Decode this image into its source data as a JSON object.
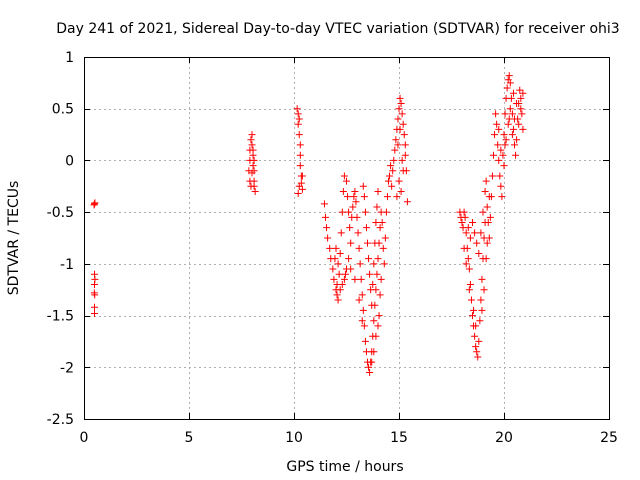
{
  "chart_data": {
    "type": "scatter",
    "title": "Day 241 of 2021, Sidereal Day-to-day VTEC variation (SDTVAR) for receiver ohi3",
    "xlabel": "GPS time / hours",
    "ylabel": "SDTVAR / TECUs",
    "xlim": [
      0,
      25
    ],
    "ylim": [
      -2.5,
      1
    ],
    "xticks": [
      0,
      5,
      10,
      15,
      20,
      25
    ],
    "xtick_labels": [
      "0",
      "5",
      "10",
      "15",
      "20",
      "25"
    ],
    "yticks": [
      -2.5,
      -2,
      -1.5,
      -1,
      -0.5,
      0,
      0.5,
      1
    ],
    "ytick_labels": [
      "-2.5",
      "-2",
      "-1.5",
      "-1",
      "-0.5",
      "0",
      "0.5",
      "1"
    ],
    "grid": true,
    "legend": "none",
    "marker": "plus",
    "color": "#ff0000",
    "series": [
      {
        "points": [
          [
            0.5,
            -0.42
          ],
          [
            0.52,
            -0.41
          ],
          [
            0.48,
            -0.43
          ],
          [
            0.5,
            -1.1
          ],
          [
            0.52,
            -1.15
          ],
          [
            0.5,
            -1.2
          ],
          [
            0.49,
            -1.28
          ],
          [
            0.51,
            -1.3
          ],
          [
            0.5,
            -1.42
          ],
          [
            0.5,
            -1.48
          ],
          [
            7.85,
            -0.1
          ],
          [
            7.9,
            0.0
          ],
          [
            7.9,
            0.1
          ],
          [
            7.95,
            0.2
          ],
          [
            8.0,
            0.25
          ],
          [
            8.0,
            0.15
          ],
          [
            8.05,
            0.05
          ],
          [
            8.05,
            -0.05
          ],
          [
            8.1,
            -0.1
          ],
          [
            8.1,
            -0.2
          ],
          [
            8.1,
            -0.25
          ],
          [
            8.15,
            -0.3
          ],
          [
            7.95,
            -0.25
          ],
          [
            7.9,
            -0.2
          ],
          [
            8.0,
            -0.12
          ],
          [
            8.05,
            0.1
          ],
          [
            8.1,
            0.0
          ],
          [
            10.15,
            0.5
          ],
          [
            10.2,
            0.45
          ],
          [
            10.2,
            0.35
          ],
          [
            10.25,
            0.25
          ],
          [
            10.3,
            0.15
          ],
          [
            10.3,
            0.05
          ],
          [
            10.3,
            -0.05
          ],
          [
            10.35,
            -0.15
          ],
          [
            10.35,
            -0.22
          ],
          [
            10.4,
            -0.28
          ],
          [
            10.2,
            -0.32
          ],
          [
            10.25,
            -0.25
          ],
          [
            10.4,
            -0.15
          ],
          [
            10.25,
            0.4
          ],
          [
            11.45,
            -0.42
          ],
          [
            11.5,
            -0.55
          ],
          [
            11.55,
            -0.65
          ],
          [
            11.6,
            -0.75
          ],
          [
            11.7,
            -0.85
          ],
          [
            11.75,
            -0.95
          ],
          [
            11.85,
            -1.05
          ],
          [
            11.9,
            -1.15
          ],
          [
            12.0,
            -1.25
          ],
          [
            12.05,
            -1.3
          ],
          [
            12.1,
            -1.35
          ],
          [
            11.95,
            -0.95
          ],
          [
            12.0,
            -0.85
          ],
          [
            12.1,
            -1.0
          ],
          [
            12.15,
            -1.1
          ],
          [
            12.2,
            -0.9
          ],
          [
            12.25,
            -0.7
          ],
          [
            12.3,
            -0.5
          ],
          [
            12.35,
            -0.3
          ],
          [
            12.4,
            -0.15
          ],
          [
            12.5,
            -0.2
          ],
          [
            12.55,
            -0.35
          ],
          [
            12.6,
            -0.5
          ],
          [
            12.65,
            -0.65
          ],
          [
            12.7,
            -0.8
          ],
          [
            12.6,
            -0.95
          ],
          [
            12.5,
            -1.05
          ],
          [
            12.4,
            -1.15
          ],
          [
            12.75,
            -0.55
          ],
          [
            12.8,
            -0.45
          ],
          [
            12.85,
            -0.35
          ],
          [
            12.9,
            -0.3
          ],
          [
            12.95,
            -0.4
          ],
          [
            13.0,
            -0.55
          ],
          [
            13.05,
            -0.7
          ],
          [
            13.1,
            -0.85
          ],
          [
            13.15,
            -1.0
          ],
          [
            13.2,
            -1.15
          ],
          [
            13.25,
            -1.3
          ],
          [
            13.3,
            -1.45
          ],
          [
            13.35,
            -1.6
          ],
          [
            13.4,
            -1.75
          ],
          [
            13.45,
            -1.85
          ],
          [
            13.5,
            -1.95
          ],
          [
            13.55,
            -2.0
          ],
          [
            13.6,
            -2.05
          ],
          [
            13.65,
            -1.95
          ],
          [
            13.7,
            -1.85
          ],
          [
            13.75,
            -1.7
          ],
          [
            13.8,
            -1.55
          ],
          [
            13.85,
            -1.4
          ],
          [
            13.9,
            -1.25
          ],
          [
            13.95,
            -1.1
          ],
          [
            14.0,
            -0.95
          ],
          [
            14.05,
            -0.8
          ],
          [
            13.3,
            -0.25
          ],
          [
            13.35,
            -0.35
          ],
          [
            13.4,
            -0.5
          ],
          [
            13.45,
            -0.65
          ],
          [
            13.5,
            -0.8
          ],
          [
            13.55,
            -0.95
          ],
          [
            13.6,
            -1.1
          ],
          [
            13.65,
            -1.25
          ],
          [
            13.7,
            -1.4
          ],
          [
            13.75,
            -1.2
          ],
          [
            13.8,
            -1.0
          ],
          [
            13.85,
            -0.8
          ],
          [
            13.9,
            -0.6
          ],
          [
            13.95,
            -0.45
          ],
          [
            14.0,
            -0.3
          ],
          [
            14.1,
            -0.65
          ],
          [
            14.15,
            -0.5
          ],
          [
            14.2,
            -0.6
          ],
          [
            14.25,
            -0.85
          ],
          [
            14.3,
            -1.0
          ],
          [
            14.35,
            -0.75
          ],
          [
            14.4,
            -0.5
          ],
          [
            14.45,
            -0.35
          ],
          [
            14.5,
            -0.2
          ],
          [
            14.55,
            -0.15
          ],
          [
            14.6,
            -0.05
          ],
          [
            14.65,
            -0.25
          ],
          [
            14.7,
            -0.1
          ],
          [
            14.75,
            0.0
          ],
          [
            14.8,
            0.1
          ],
          [
            14.85,
            0.2
          ],
          [
            14.9,
            0.3
          ],
          [
            14.95,
            0.4
          ],
          [
            15.0,
            0.5
          ],
          [
            15.05,
            0.6
          ],
          [
            15.1,
            0.55
          ],
          [
            15.15,
            0.45
          ],
          [
            15.2,
            0.35
          ],
          [
            15.25,
            0.25
          ],
          [
            15.3,
            0.15
          ],
          [
            15.35,
            -0.1
          ],
          [
            15.4,
            -0.4
          ],
          [
            14.9,
            -0.35
          ],
          [
            15.0,
            -0.2
          ],
          [
            15.1,
            -0.3
          ],
          [
            15.2,
            -0.1
          ],
          [
            15.3,
            0.05
          ],
          [
            14.95,
            0.15
          ],
          [
            15.05,
            0.3
          ],
          [
            15.15,
            0.0
          ],
          [
            12.2,
            -1.25
          ],
          [
            12.3,
            -1.2
          ],
          [
            12.45,
            -1.1
          ],
          [
            12.7,
            -1.05
          ],
          [
            12.9,
            -1.15
          ],
          [
            13.1,
            -1.35
          ],
          [
            13.25,
            -1.55
          ],
          [
            14.05,
            -1.5
          ],
          [
            14.1,
            -1.3
          ],
          [
            13.9,
            -1.7
          ],
          [
            13.7,
            -1.95
          ],
          [
            13.8,
            -1.85
          ],
          [
            14.0,
            -1.6
          ],
          [
            14.15,
            -1.15
          ],
          [
            12.05,
            -1.2
          ],
          [
            17.9,
            -0.5
          ],
          [
            17.95,
            -0.55
          ],
          [
            18.0,
            -0.6
          ],
          [
            18.05,
            -0.65
          ],
          [
            18.1,
            -0.5
          ],
          [
            18.15,
            -0.55
          ],
          [
            18.2,
            -0.7
          ],
          [
            18.25,
            -0.85
          ],
          [
            18.3,
            -0.95
          ],
          [
            18.35,
            -1.05
          ],
          [
            18.4,
            -1.2
          ],
          [
            18.45,
            -1.35
          ],
          [
            18.5,
            -1.5
          ],
          [
            18.55,
            -1.6
          ],
          [
            18.6,
            -1.7
          ],
          [
            18.65,
            -1.8
          ],
          [
            18.7,
            -1.85
          ],
          [
            18.75,
            -1.9
          ],
          [
            18.8,
            -1.75
          ],
          [
            18.85,
            -1.55
          ],
          [
            18.9,
            -1.35
          ],
          [
            18.95,
            -1.15
          ],
          [
            19.0,
            -0.95
          ],
          [
            19.05,
            -0.75
          ],
          [
            19.1,
            -0.6
          ],
          [
            18.3,
            -0.65
          ],
          [
            18.4,
            -0.75
          ],
          [
            18.5,
            -0.6
          ],
          [
            18.6,
            -0.7
          ],
          [
            18.7,
            -0.8
          ],
          [
            18.8,
            -0.9
          ],
          [
            18.9,
            -0.7
          ],
          [
            19.0,
            -0.5
          ],
          [
            19.1,
            -0.3
          ],
          [
            19.15,
            -0.2
          ],
          [
            19.2,
            -0.45
          ],
          [
            19.25,
            -0.6
          ],
          [
            19.3,
            -0.75
          ],
          [
            19.35,
            -0.55
          ],
          [
            19.4,
            -0.35
          ],
          [
            19.45,
            -0.15
          ],
          [
            19.5,
            0.05
          ],
          [
            19.55,
            0.25
          ],
          [
            19.6,
            0.45
          ],
          [
            19.65,
            0.35
          ],
          [
            19.7,
            0.15
          ],
          [
            19.75,
            0.0
          ],
          [
            19.8,
            -0.15
          ],
          [
            19.85,
            -0.25
          ],
          [
            19.9,
            -0.35
          ],
          [
            19.95,
            0.05
          ],
          [
            20.0,
            0.25
          ],
          [
            20.05,
            0.45
          ],
          [
            20.1,
            0.6
          ],
          [
            20.15,
            0.7
          ],
          [
            20.2,
            0.78
          ],
          [
            20.25,
            0.82
          ],
          [
            20.3,
            0.75
          ],
          [
            20.35,
            0.6
          ],
          [
            20.4,
            0.45
          ],
          [
            20.45,
            0.3
          ],
          [
            20.5,
            0.15
          ],
          [
            20.55,
            0.05
          ],
          [
            20.6,
            0.2
          ],
          [
            20.65,
            0.4
          ],
          [
            20.7,
            0.55
          ],
          [
            20.75,
            0.68
          ],
          [
            20.8,
            0.6
          ],
          [
            20.85,
            0.45
          ],
          [
            20.9,
            0.3
          ],
          [
            20.1,
            0.2
          ],
          [
            20.2,
            0.35
          ],
          [
            20.3,
            0.5
          ],
          [
            20.4,
            0.25
          ],
          [
            20.5,
            0.4
          ],
          [
            20.6,
            0.55
          ],
          [
            20.7,
            0.35
          ],
          [
            20.8,
            0.5
          ],
          [
            20.9,
            0.65
          ],
          [
            20.0,
            -0.05
          ],
          [
            19.85,
            0.1
          ],
          [
            19.75,
            0.3
          ],
          [
            20.05,
            0.15
          ],
          [
            20.25,
            0.4
          ],
          [
            20.45,
            0.65
          ],
          [
            18.1,
            -0.85
          ],
          [
            18.2,
            -1.0
          ],
          [
            18.35,
            -1.25
          ],
          [
            18.55,
            -1.45
          ],
          [
            18.65,
            -1.6
          ],
          [
            18.95,
            -1.45
          ],
          [
            19.05,
            -1.25
          ],
          [
            19.15,
            -0.95
          ],
          [
            19.2,
            -0.8
          ],
          [
            19.3,
            -0.35
          ]
        ]
      }
    ]
  }
}
